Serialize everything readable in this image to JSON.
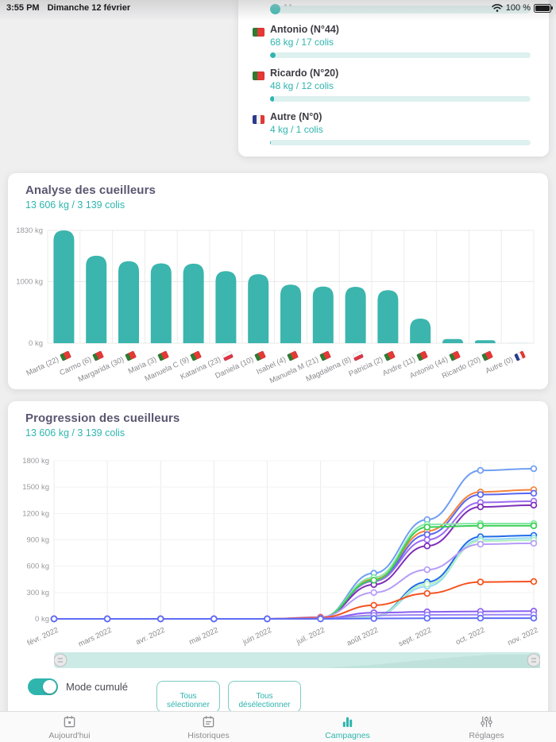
{
  "status_bar": {
    "time": "3:55 PM",
    "date": "Dimanche 12 février",
    "battery": "100 %"
  },
  "summary_card": {
    "items": [
      {
        "name": "Antonio (N°44)",
        "detail": "68 kg / 17 colis",
        "flag": "pt",
        "progress_pct": 2.0
      },
      {
        "name": "Ricardo (N°20)",
        "detail": "48 kg / 12 colis",
        "flag": "pt",
        "progress_pct": 1.4
      },
      {
        "name": "Autre (N°0)",
        "detail": "4 kg / 1 colis",
        "flag": "fr",
        "progress_pct": 0.4
      }
    ]
  },
  "analysis_card": {
    "title": "Analyse des cueilleurs",
    "subtitle": "13 606 kg / 3 139 colis"
  },
  "progression_card": {
    "title": "Progression des cueilleurs",
    "subtitle": "13 606 kg / 3 139 colis",
    "mode_label": "Mode cumulé",
    "select_all": "Tous sélectionner",
    "deselect_all": "Tous désélectionner"
  },
  "tab_bar": {
    "tabs": [
      {
        "key": "aujourdhui",
        "label": "Aujourd'hui",
        "icon": "calendar-today-icon",
        "active": false
      },
      {
        "key": "historiques",
        "label": "Historiques",
        "icon": "calendar-list-icon",
        "active": false
      },
      {
        "key": "campagnes",
        "label": "Campagnes",
        "icon": "bar-chart-icon",
        "active": true
      },
      {
        "key": "reglages",
        "label": "Réglages",
        "icon": "sliders-icon",
        "active": false
      }
    ]
  },
  "colors": {
    "accent": "#2fb5ae",
    "bar": "#3bb5ae",
    "bar_muted": "#aadedb",
    "track": "#ddf1ef",
    "grid": "#ececee",
    "axis_text": "#9a9a9f"
  },
  "chart_data": [
    {
      "type": "bar",
      "title": "Analyse des cueilleurs",
      "categories": [
        "Marta (22)",
        "Carmo (6)",
        "Margarida (30)",
        "Maria (3)",
        "Manuela C (9)",
        "Katarina (23)",
        "Daniela (10)",
        "Isabel (4)",
        "Manuela M (21)",
        "Magdalena (8)",
        "Patricia (2)",
        "Andre (11)",
        "Antonio (44)",
        "Ricardo (20)",
        "Autre (0)"
      ],
      "flags": [
        "pt",
        "pt",
        "pt",
        "pt",
        "pt",
        "pl",
        "pt",
        "pt",
        "pt",
        "pl",
        "pt",
        "pt",
        "pt",
        "pt",
        "fr"
      ],
      "values": [
        1830,
        1420,
        1330,
        1295,
        1290,
        1170,
        1120,
        950,
        920,
        915,
        860,
        400,
        68,
        48,
        4
      ],
      "ylabel": "kg",
      "ylim": [
        0,
        1830
      ],
      "ytick_values": [
        0,
        1000,
        1830
      ],
      "ytick_labels": [
        "0 kg",
        "1000 kg",
        "1830 kg"
      ],
      "grid": true,
      "legend": "none"
    },
    {
      "type": "line",
      "title": "Progression des cueilleurs",
      "x": [
        "févr. 2022",
        "mars 2022",
        "avr. 2022",
        "mai 2022",
        "juin 2022",
        "juil. 2022",
        "août 2022",
        "sept. 2022",
        "oct. 2022",
        "nov. 2022"
      ],
      "ylim": [
        0,
        1800
      ],
      "ytick_values": [
        0,
        300,
        600,
        900,
        1200,
        1500,
        1800
      ],
      "ytick_labels": [
        "0 kg",
        "300 kg",
        "600 kg",
        "900 kg",
        "1200 kg",
        "1500 kg",
        "1800 kg"
      ],
      "grid": true,
      "legend": "none",
      "marker": "open-circle",
      "series": [
        {
          "name": "Marta (22)",
          "color": "#6f9ef3",
          "values": [
            0,
            0,
            0,
            0,
            0,
            10,
            520,
            1130,
            1690,
            1710
          ]
        },
        {
          "name": "Carmo (6)",
          "color": "#f5833a",
          "values": [
            0,
            0,
            0,
            0,
            0,
            10,
            450,
            1000,
            1445,
            1470
          ]
        },
        {
          "name": "Margarida (30)",
          "color": "#5a67ef",
          "values": [
            0,
            0,
            0,
            0,
            0,
            10,
            430,
            960,
            1415,
            1430
          ]
        },
        {
          "name": "Maria (3)",
          "color": "#9d6cf0",
          "values": [
            0,
            0,
            0,
            0,
            0,
            15,
            430,
            900,
            1325,
            1340
          ]
        },
        {
          "name": "Manuela C (9)",
          "color": "#7d2eb8",
          "values": [
            0,
            0,
            0,
            0,
            0,
            10,
            390,
            830,
            1275,
            1295
          ]
        },
        {
          "name": "Katarina (23)",
          "color": "#86e8a6",
          "values": [
            0,
            0,
            0,
            0,
            0,
            15,
            470,
            1075,
            1085,
            1085
          ]
        },
        {
          "name": "Daniela (10)",
          "color": "#38cf54",
          "values": [
            0,
            0,
            0,
            0,
            0,
            12,
            440,
            1045,
            1060,
            1060
          ]
        },
        {
          "name": "Isabel (4)",
          "color": "#1f6be8",
          "values": [
            0,
            0,
            0,
            0,
            0,
            0,
            30,
            420,
            935,
            950
          ]
        },
        {
          "name": "Manuela M (21)",
          "color": "#93d9f5",
          "values": [
            0,
            0,
            0,
            0,
            0,
            0,
            25,
            370,
            905,
            920
          ]
        },
        {
          "name": "Magdalena (8)",
          "color": "#b2f0c2",
          "values": [
            0,
            0,
            0,
            0,
            0,
            0,
            30,
            395,
            885,
            895
          ]
        },
        {
          "name": "Patricia (2)",
          "color": "#b69cf8",
          "values": [
            0,
            0,
            0,
            0,
            0,
            20,
            300,
            560,
            850,
            860
          ]
        },
        {
          "name": "Andre (11)",
          "color": "#f4521e",
          "values": [
            0,
            0,
            0,
            0,
            0,
            15,
            155,
            290,
            420,
            425
          ]
        },
        {
          "name": "Antonio (44)",
          "color": "#8a5ff0",
          "values": [
            0,
            0,
            0,
            0,
            0,
            5,
            70,
            80,
            85,
            88
          ]
        },
        {
          "name": "Ricardo (20)",
          "color": "#9f86f2",
          "values": [
            0,
            0,
            0,
            0,
            0,
            4,
            40,
            45,
            47,
            48
          ]
        },
        {
          "name": "Autre (0)",
          "color": "#5f6cf5",
          "values": [
            0,
            0,
            0,
            0,
            0,
            0,
            4,
            7,
            8,
            8
          ]
        }
      ]
    }
  ]
}
